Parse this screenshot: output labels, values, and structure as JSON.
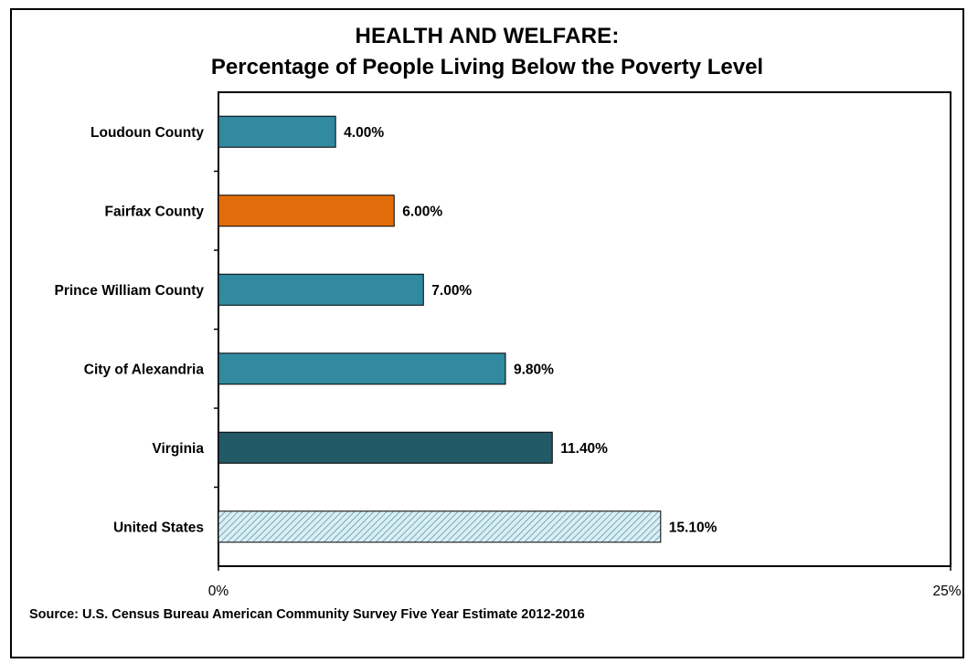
{
  "title": "HEALTH AND WELFARE:",
  "subtitle": "Percentage of People Living Below the Poverty Level",
  "source": "Source:  U.S. Census Bureau American Community Survey Five Year Estimate 2012-2016",
  "chart_data": {
    "type": "bar",
    "orientation": "horizontal",
    "categories": [
      "Loudoun County",
      "Fairfax County",
      "Prince William County",
      "City of Alexandria",
      "Virginia",
      "United States"
    ],
    "values": [
      4.0,
      6.0,
      7.0,
      9.8,
      11.4,
      15.1
    ],
    "data_labels": [
      "4.00%",
      "6.00%",
      "7.00%",
      "9.80%",
      "11.40%",
      "15.10%"
    ],
    "bar_colors": [
      "#318a9f",
      "#e36c0a",
      "#318a9f",
      "#318a9f",
      "#215967",
      "hatched"
    ],
    "hatch_colors": {
      "background": "#dbeef4",
      "line": "#5a9aab"
    },
    "xlim": [
      0,
      25
    ],
    "x_tick_labels": [
      "0%",
      "25%"
    ],
    "grid": false,
    "legend": "none"
  }
}
